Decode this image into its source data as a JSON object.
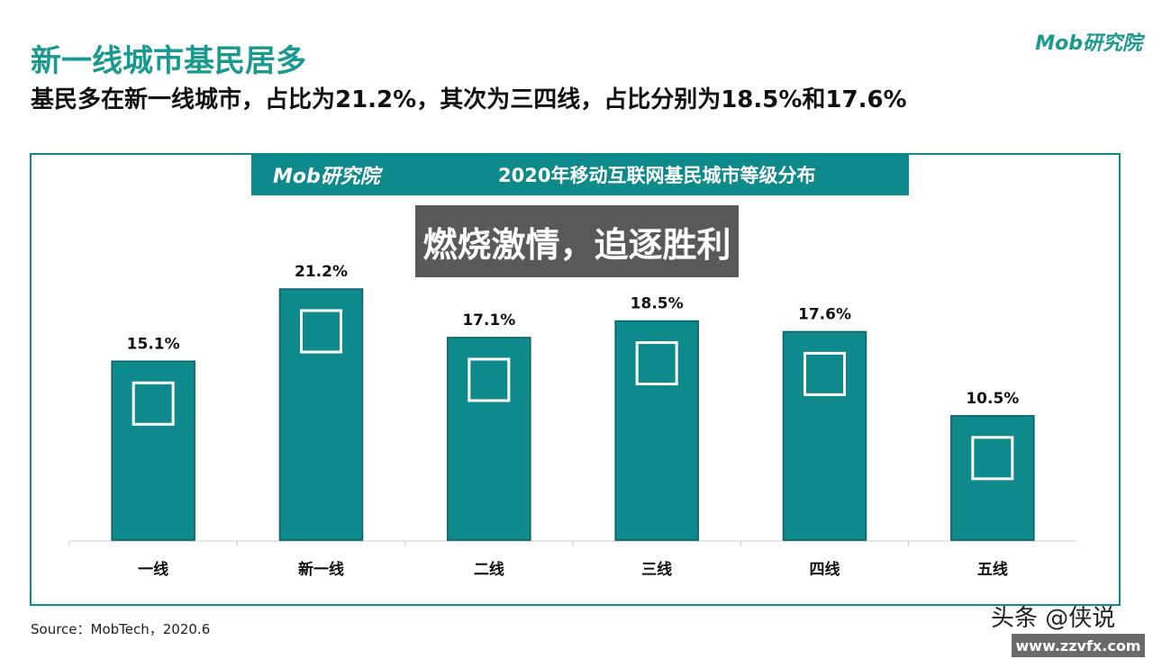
{
  "header": {
    "title": "新一线城市基民居多",
    "subtitle": "基民多在新一线城市，占比为21.2%，其次为三四线，占比分别为18.5%和17.6%",
    "logo": "Mob研究院"
  },
  "banner": {
    "logo": "Mob研究院",
    "title": "2020年移动互联网基民城市等级分布"
  },
  "chart_data": {
    "type": "bar",
    "title": "2020年移动互联网基民城市等级分布",
    "categories": [
      "一线",
      "新一线",
      "二线",
      "三线",
      "四线",
      "五线"
    ],
    "values": [
      15.1,
      21.2,
      17.1,
      18.5,
      17.6,
      10.5
    ],
    "labels": [
      "15.1%",
      "21.2%",
      "17.1%",
      "18.5%",
      "17.6%",
      "10.5%"
    ],
    "ylim": [
      0,
      21.2
    ],
    "unit": "%",
    "color": "#0f8a8c",
    "grid": false
  },
  "source": "Source：MobTech，2020.6",
  "overlay": "燃烧激情，追逐胜利",
  "watermark": {
    "text": "头条 @侠说",
    "site": "www.zzvfx.com"
  }
}
